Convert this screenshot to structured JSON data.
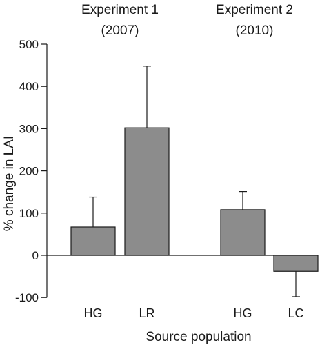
{
  "chart_data": {
    "type": "bar",
    "ylabel": "% change in LAI",
    "xlabel": "Source population",
    "ylim": [
      -100,
      500
    ],
    "yticks": [
      -100,
      0,
      100,
      200,
      300,
      400,
      500
    ],
    "grid": false,
    "bar_color": "#8c8c8c",
    "groups": [
      {
        "title_line1": "Experiment 1",
        "title_line2": "(2007)",
        "bars": [
          {
            "category": "HG",
            "value": 67,
            "error": 71
          },
          {
            "category": "LR",
            "value": 302,
            "error": 146
          }
        ]
      },
      {
        "title_line1": "Experiment 2",
        "title_line2": "(2010)",
        "bars": [
          {
            "category": "HG",
            "value": 108,
            "error": 43
          },
          {
            "category": "LC",
            "value": -38,
            "error": 60
          }
        ]
      }
    ]
  }
}
